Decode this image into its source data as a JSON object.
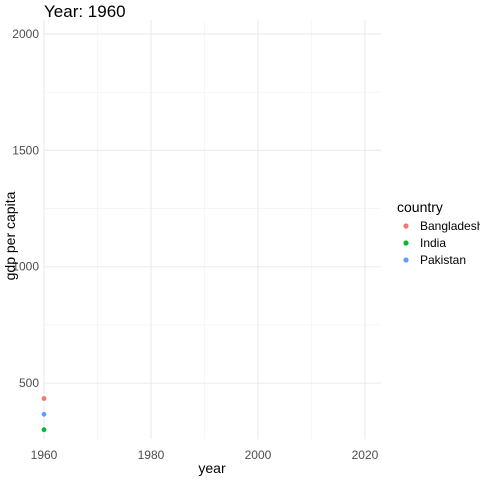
{
  "chart_data": {
    "type": "scatter",
    "title": "Year: 1960",
    "xlabel": "year",
    "ylabel": "gdp per capita",
    "xlim": [
      1960,
      2023
    ],
    "ylim": [
      260,
      2060
    ],
    "x_ticks": [
      1960,
      1980,
      2000,
      2020
    ],
    "y_ticks": [
      500,
      1000,
      1500,
      2000
    ],
    "grid": true,
    "legend": {
      "title": "country",
      "position": "right"
    },
    "series": [
      {
        "name": "Bangladesh",
        "color": "#F8766D",
        "points": [
          {
            "x": 1960,
            "y": 434
          }
        ]
      },
      {
        "name": "India",
        "color": "#00BA38",
        "points": [
          {
            "x": 1960,
            "y": 300
          }
        ]
      },
      {
        "name": "Pakistan",
        "color": "#619CFF",
        "points": [
          {
            "x": 1960,
            "y": 366
          }
        ]
      }
    ]
  }
}
